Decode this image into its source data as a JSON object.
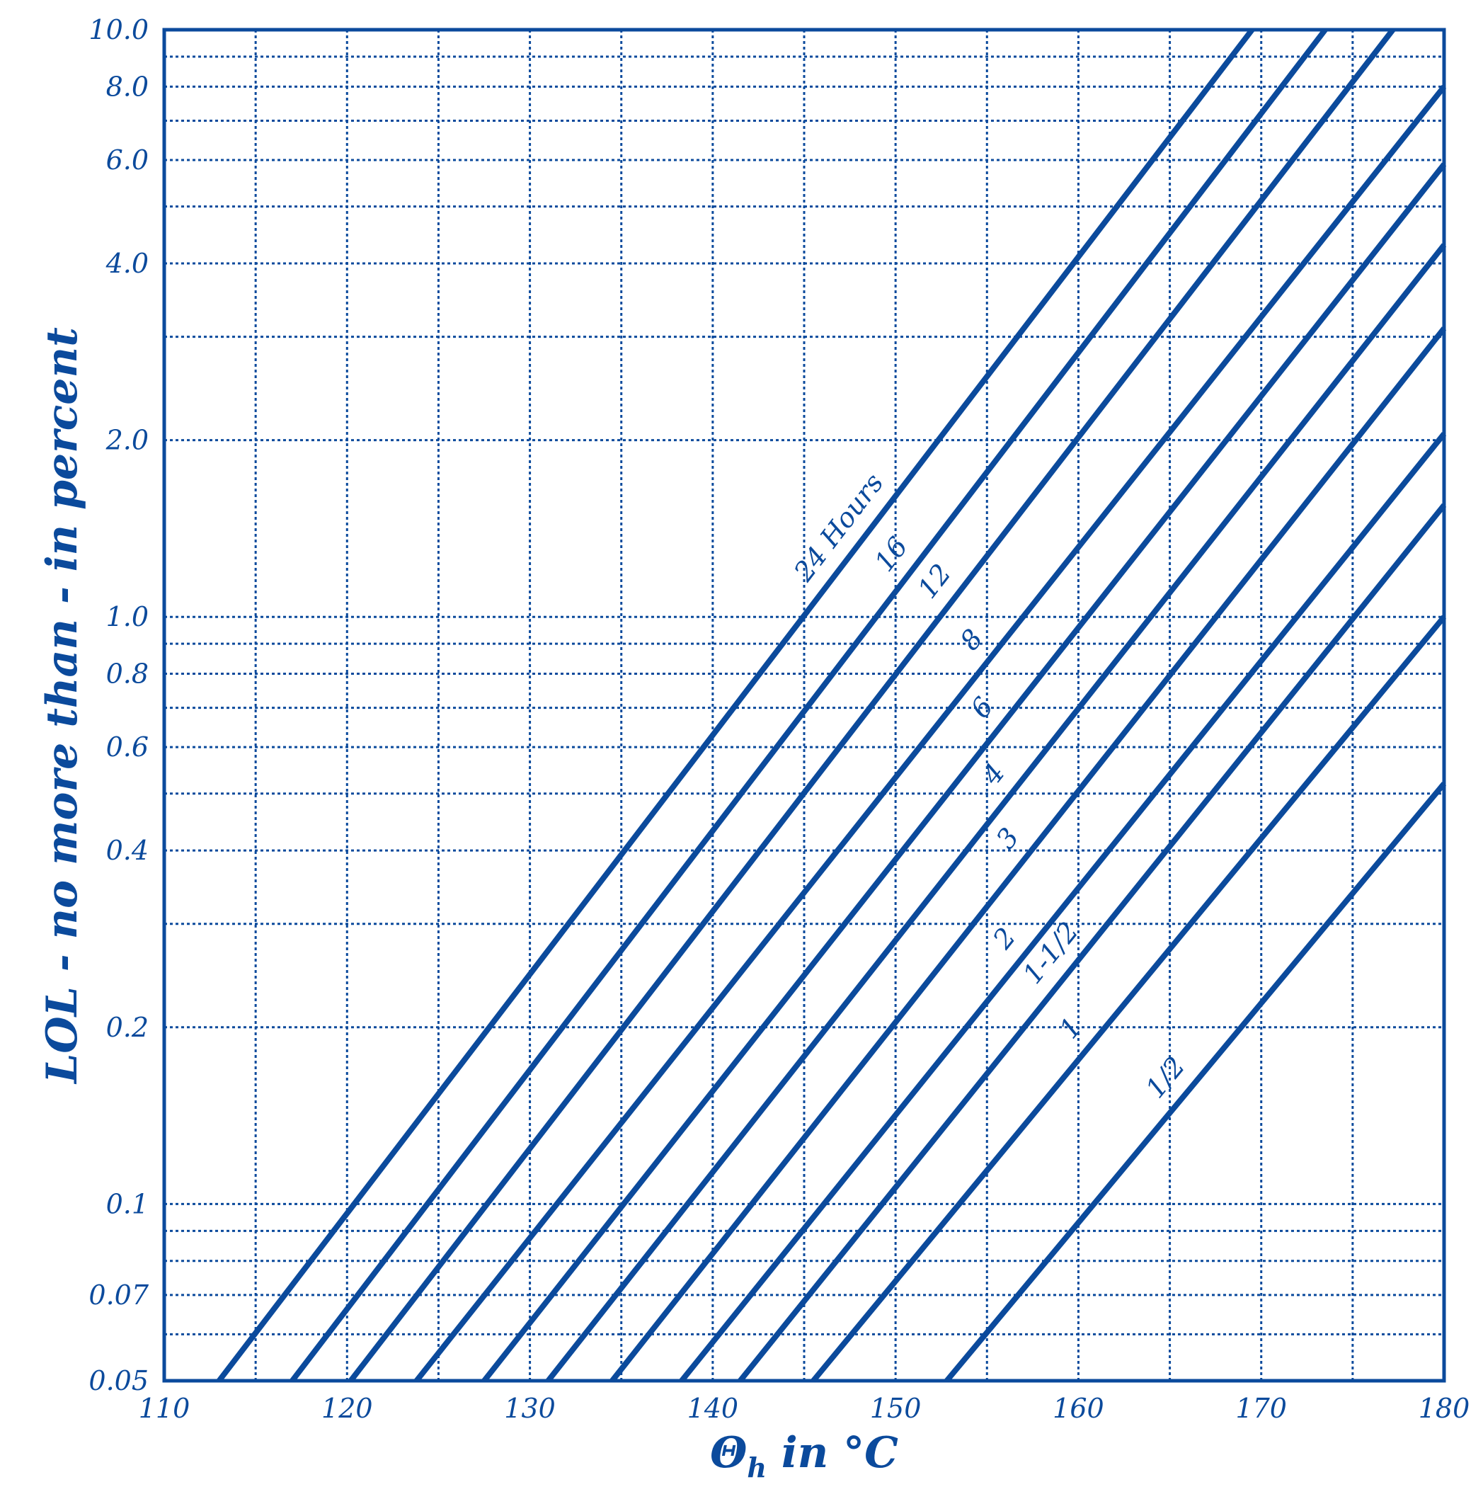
{
  "colors": {
    "primary": "#0b4a9c"
  },
  "chart_data": {
    "type": "line",
    "title": "",
    "xlabel": "Θh in °C",
    "xlabel_symbol": "Θ",
    "xlabel_sub": "h",
    "xlabel_rest": " in °C",
    "ylabel": "LOL - no more than - in percent",
    "xlim": [
      110,
      180
    ],
    "ylim": [
      0.05,
      10.0
    ],
    "yscale": "log",
    "grid": true,
    "x_ticks": [
      110,
      120,
      130,
      140,
      150,
      160,
      170,
      180
    ],
    "y_ticks": [
      "0.05",
      "0.07",
      "0.1",
      "0.2",
      "0.4",
      "0.6",
      "0.8",
      "1.0",
      "2.0",
      "4.0",
      "6.0",
      "8.0",
      "10.0"
    ],
    "series": [
      {
        "name": "24 Hours",
        "x": [
          113.0,
          169.5
        ],
        "y": [
          0.05,
          10.0
        ]
      },
      {
        "name": "16",
        "x": [
          117.0,
          173.5
        ],
        "y": [
          0.05,
          10.0
        ]
      },
      {
        "name": "12",
        "x": [
          120.2,
          177.2
        ],
        "y": [
          0.05,
          10.0
        ]
      },
      {
        "name": "8",
        "x": [
          123.8,
          180.0
        ],
        "y": [
          0.05,
          8.0
        ]
      },
      {
        "name": "6",
        "x": [
          127.5,
          180.0
        ],
        "y": [
          0.05,
          5.9
        ]
      },
      {
        "name": "4",
        "x": [
          131.0,
          180.0
        ],
        "y": [
          0.05,
          4.3
        ]
      },
      {
        "name": "3",
        "x": [
          134.5,
          180.0
        ],
        "y": [
          0.05,
          3.1
        ]
      },
      {
        "name": "2",
        "x": [
          138.3,
          180.0
        ],
        "y": [
          0.05,
          2.05
        ]
      },
      {
        "name": "1-1/2",
        "x": [
          141.5,
          180.0
        ],
        "y": [
          0.05,
          1.55
        ]
      },
      {
        "name": "1",
        "x": [
          145.5,
          180.0
        ],
        "y": [
          0.05,
          1.0
        ]
      },
      {
        "name": "1/2",
        "x": [
          152.8,
          180.0
        ],
        "y": [
          0.05,
          0.52
        ]
      }
    ]
  }
}
